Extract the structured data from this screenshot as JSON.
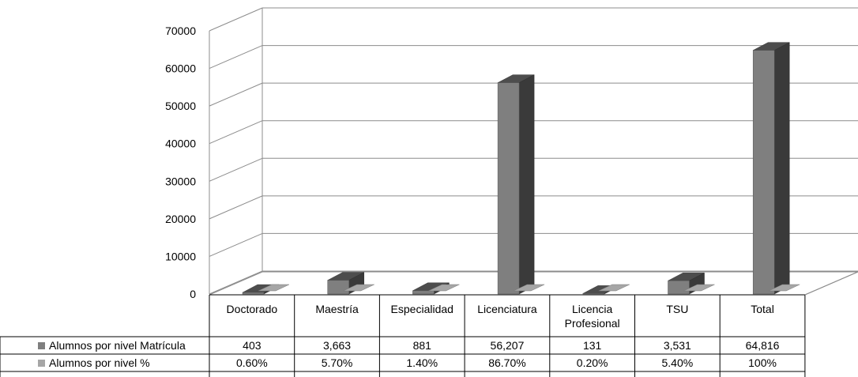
{
  "chart_data": {
    "type": "bar",
    "categories": [
      "Doctorado",
      "Maestría",
      "Especialidad",
      "Licenciatura",
      "Licencia Profesional",
      "TSU",
      "Total"
    ],
    "series": [
      {
        "name": "Alumnos por nivel Matrícula",
        "values": [
          403,
          3663,
          881,
          56207,
          131,
          3531,
          64816
        ],
        "labels": [
          "403",
          "3,663",
          "881",
          "56,207",
          "131",
          "3,531",
          "64,816"
        ],
        "color": "#7f7f7f"
      },
      {
        "name": "Alumnos por nivel %",
        "values": [
          0.6,
          5.7,
          1.4,
          86.7,
          0.2,
          5.4,
          100
        ],
        "labels": [
          "0.60%",
          "5.70%",
          "1.40%",
          "86.70%",
          "0.20%",
          "5.40%",
          "100%"
        ],
        "color": "#a6a6a6"
      }
    ],
    "yticks": [
      "0",
      "10000",
      "20000",
      "30000",
      "40000",
      "50000",
      "60000",
      "70000"
    ],
    "ylim": [
      0,
      70000
    ],
    "grid": true,
    "legend": "data-table",
    "three_d": true
  }
}
